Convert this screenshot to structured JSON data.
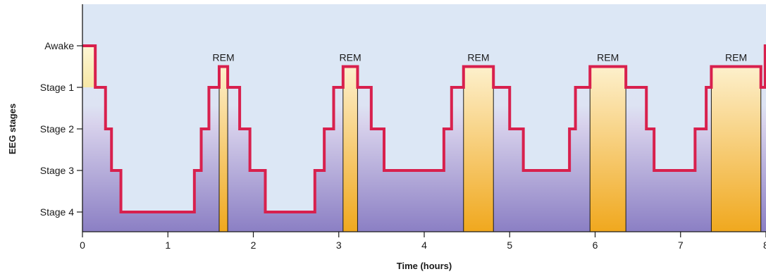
{
  "chart_data": {
    "type": "line",
    "xlabel": "Time (hours)",
    "ylabel": "EEG stages",
    "xlim": [
      0,
      8
    ],
    "x_ticks": [
      "0",
      "1",
      "2",
      "3",
      "4",
      "5",
      "6",
      "7",
      "8"
    ],
    "y_categories": [
      "Awake",
      "Stage 1",
      "Stage 2",
      "Stage 3",
      "Stage 4"
    ],
    "y_ticks": [
      {
        "label": "Awake",
        "value": 0
      },
      {
        "label": "Stage 1",
        "value": 1
      },
      {
        "label": "Stage 2",
        "value": 2
      },
      {
        "label": "Stage 3",
        "value": 3
      },
      {
        "label": "Stage 4",
        "value": 4
      }
    ],
    "rem_label": "REM",
    "rem_periods": [
      {
        "start": 1.6,
        "end": 1.7
      },
      {
        "start": 3.05,
        "end": 3.22
      },
      {
        "start": 4.46,
        "end": 4.81
      },
      {
        "start": 5.94,
        "end": 6.36
      },
      {
        "start": 7.36,
        "end": 7.94
      }
    ],
    "hypnogram": [
      {
        "x": 0.0,
        "stage": 0
      },
      {
        "x": 0.15,
        "stage": 1
      },
      {
        "x": 0.27,
        "stage": 2
      },
      {
        "x": 0.34,
        "stage": 3
      },
      {
        "x": 0.45,
        "stage": 4
      },
      {
        "x": 1.31,
        "stage": 3
      },
      {
        "x": 1.39,
        "stage": 2
      },
      {
        "x": 1.48,
        "stage": 1
      },
      {
        "x": 1.6,
        "stage": 0.5
      },
      {
        "x": 1.7,
        "stage": 1
      },
      {
        "x": 1.84,
        "stage": 2
      },
      {
        "x": 1.96,
        "stage": 3
      },
      {
        "x": 2.14,
        "stage": 4
      },
      {
        "x": 2.72,
        "stage": 3
      },
      {
        "x": 2.83,
        "stage": 2
      },
      {
        "x": 2.94,
        "stage": 1
      },
      {
        "x": 3.05,
        "stage": 0.5
      },
      {
        "x": 3.22,
        "stage": 1
      },
      {
        "x": 3.38,
        "stage": 2
      },
      {
        "x": 3.53,
        "stage": 3
      },
      {
        "x": 4.23,
        "stage": 2
      },
      {
        "x": 4.32,
        "stage": 1
      },
      {
        "x": 4.46,
        "stage": 0.5
      },
      {
        "x": 4.81,
        "stage": 1
      },
      {
        "x": 5.0,
        "stage": 2
      },
      {
        "x": 5.16,
        "stage": 3
      },
      {
        "x": 5.7,
        "stage": 2
      },
      {
        "x": 5.77,
        "stage": 1
      },
      {
        "x": 5.94,
        "stage": 0.5
      },
      {
        "x": 6.36,
        "stage": 1
      },
      {
        "x": 6.6,
        "stage": 2
      },
      {
        "x": 6.69,
        "stage": 3
      },
      {
        "x": 7.17,
        "stage": 2
      },
      {
        "x": 7.3,
        "stage": 1
      },
      {
        "x": 7.36,
        "stage": 0.5
      },
      {
        "x": 7.94,
        "stage": 1
      },
      {
        "x": 7.99,
        "stage": 0
      },
      {
        "x": 8.0,
        "stage": 0
      }
    ],
    "colors": {
      "line": "#d8204d",
      "rem_top": "#fdf0cc",
      "rem_bottom": "#f0a81e",
      "bg_top": "#dce7f5",
      "bg_mid": "#d8d2ec",
      "bg_bottom": "#8b7fc4",
      "awake_fill_top": "#fdf6d4",
      "awake_fill_bottom": "#f6e7a6"
    }
  }
}
